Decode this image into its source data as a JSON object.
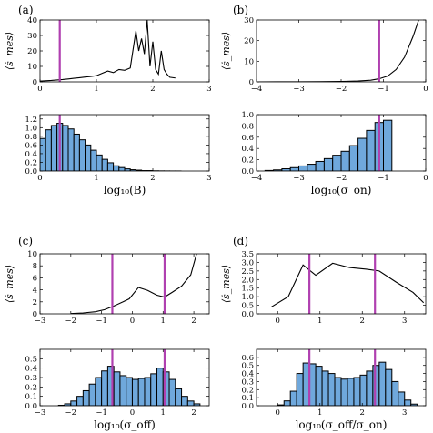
{
  "chart_data": [
    {
      "panel": "(a)",
      "top": {
        "type": "line",
        "ylabel": "⟨ṡ_mes⟩",
        "xlim": [
          0,
          3
        ],
        "ylim": [
          0,
          40
        ],
        "xticks": [
          "0",
          "1",
          "2",
          "3"
        ],
        "yticks": [
          "0",
          "10",
          "20",
          "30",
          "40"
        ],
        "x": [
          0.0,
          0.1,
          0.2,
          0.3,
          0.4,
          0.5,
          0.6,
          0.7,
          0.8,
          0.9,
          1.0,
          1.1,
          1.2,
          1.3,
          1.4,
          1.5,
          1.6,
          1.7,
          1.75,
          1.8,
          1.85,
          1.9,
          1.95,
          2.0,
          2.05,
          2.1,
          2.15,
          2.2,
          2.25,
          2.3,
          2.4
        ],
        "y": [
          0.5,
          0.7,
          0.9,
          1.2,
          1.5,
          1.9,
          2.3,
          2.7,
          3.1,
          3.5,
          4.0,
          5.5,
          7.0,
          6.0,
          8.0,
          7.5,
          9.0,
          33.0,
          20.0,
          28.0,
          18.0,
          40.0,
          10.0,
          26.0,
          8.0,
          5.0,
          20.0,
          8.0,
          5.0,
          3.0,
          2.5
        ],
        "vlines": [
          0.35
        ]
      },
      "bottom": {
        "type": "bar",
        "xlabel": "log₁₀(B)",
        "xlim": [
          0,
          3
        ],
        "ylim": [
          0,
          1.3
        ],
        "xticks": [
          "0",
          "1",
          "2",
          "3"
        ],
        "yticks": [
          "0.0",
          "0.2",
          "0.4",
          "0.6",
          "0.8",
          "1.0",
          "1.2"
        ],
        "bin_edges": [
          0.0,
          0.1,
          0.2,
          0.3,
          0.4,
          0.5,
          0.6,
          0.7,
          0.8,
          0.9,
          1.0,
          1.1,
          1.2,
          1.3,
          1.4,
          1.5,
          1.6,
          1.7,
          1.8,
          1.9,
          2.0,
          2.1,
          2.2,
          2.3,
          2.4,
          2.5
        ],
        "values": [
          0.75,
          0.95,
          1.05,
          1.1,
          1.05,
          0.97,
          0.85,
          0.72,
          0.6,
          0.48,
          0.37,
          0.27,
          0.19,
          0.12,
          0.08,
          0.05,
          0.03,
          0.02,
          0.01,
          0.01,
          0.005,
          0.003,
          0.002,
          0.001,
          0.001
        ],
        "vlines": [
          0.35
        ]
      }
    },
    {
      "panel": "(b)",
      "top": {
        "type": "line",
        "ylabel": "⟨ṡ_mes⟩",
        "xlim": [
          -4,
          0
        ],
        "ylim": [
          0,
          30
        ],
        "xticks": [
          "−4",
          "−3",
          "−2",
          "−1",
          "0"
        ],
        "yticks": [
          "0",
          "10",
          "20",
          "30"
        ],
        "x": [
          -4.0,
          -3.5,
          -3.0,
          -2.5,
          -2.0,
          -1.6,
          -1.3,
          -1.1,
          -0.9,
          -0.7,
          -0.5,
          -0.3,
          -0.15
        ],
        "y": [
          0.0,
          0.02,
          0.05,
          0.1,
          0.2,
          0.4,
          0.8,
          1.5,
          2.8,
          6.0,
          12.0,
          22.0,
          31.0
        ],
        "vlines": [
          -1.1
        ]
      },
      "bottom": {
        "type": "bar",
        "xlabel": "log₁₀(σ_on)",
        "xlim": [
          -4,
          0
        ],
        "ylim": [
          0,
          1.0
        ],
        "xticks": [
          "−4",
          "−3",
          "−2",
          "−1",
          "0"
        ],
        "yticks": [
          "0.0",
          "0.2",
          "0.4",
          "0.6",
          "0.8",
          "1.0"
        ],
        "bin_edges": [
          -3.8,
          -3.6,
          -3.4,
          -3.2,
          -3.0,
          -2.8,
          -2.6,
          -2.4,
          -2.2,
          -2.0,
          -1.8,
          -1.6,
          -1.4,
          -1.2,
          -1.0,
          -0.8
        ],
        "values": [
          0.01,
          0.02,
          0.04,
          0.06,
          0.09,
          0.12,
          0.17,
          0.22,
          0.28,
          0.35,
          0.45,
          0.58,
          0.72,
          0.86,
          0.9
        ],
        "vlines": [
          -1.1
        ]
      }
    },
    {
      "panel": "(c)",
      "top": {
        "type": "line",
        "ylabel": "⟨ṡ_mes⟩",
        "xlim": [
          -3,
          2.5
        ],
        "ylim": [
          0,
          10
        ],
        "xticks": [
          "−3",
          "−2",
          "−1",
          "0",
          "1",
          "2"
        ],
        "yticks": [
          "0",
          "2",
          "4",
          "6",
          "8",
          "10"
        ],
        "x": [
          -2.0,
          -1.6,
          -1.2,
          -0.9,
          -0.6,
          -0.3,
          -0.1,
          0.2,
          0.5,
          0.8,
          1.05,
          1.3,
          1.6,
          1.9,
          2.1
        ],
        "y": [
          0.05,
          0.15,
          0.35,
          0.7,
          1.3,
          2.0,
          2.5,
          4.4,
          3.9,
          3.1,
          2.8,
          3.6,
          4.6,
          6.5,
          10.2
        ],
        "vlines": [
          -0.65,
          1.05
        ]
      },
      "bottom": {
        "type": "bar",
        "xlabel": "log₁₀(σ_off)",
        "xlim": [
          -3,
          2.5
        ],
        "ylim": [
          0,
          0.6
        ],
        "xticks": [
          "−3",
          "−2",
          "−1",
          "0",
          "1",
          "2"
        ],
        "yticks": [
          "0.0",
          "0.1",
          "0.2",
          "0.3",
          "0.4",
          "0.5"
        ],
        "bin_edges": [
          -2.4,
          -2.2,
          -2.0,
          -1.8,
          -1.6,
          -1.4,
          -1.2,
          -1.0,
          -0.8,
          -0.6,
          -0.4,
          -0.2,
          0.0,
          0.2,
          0.4,
          0.6,
          0.8,
          1.0,
          1.2,
          1.4,
          1.6,
          1.8,
          2.0,
          2.2
        ],
        "values": [
          0.005,
          0.02,
          0.05,
          0.1,
          0.16,
          0.23,
          0.3,
          0.37,
          0.42,
          0.36,
          0.32,
          0.3,
          0.28,
          0.29,
          0.3,
          0.34,
          0.4,
          0.36,
          0.28,
          0.18,
          0.1,
          0.05,
          0.02
        ],
        "vlines": [
          -0.65,
          1.05
        ]
      }
    },
    {
      "panel": "(d)",
      "top": {
        "type": "line",
        "ylabel": "⟨ṡ_mes⟩",
        "xlim": [
          -0.5,
          3.5
        ],
        "ylim": [
          0,
          3.5
        ],
        "xticks": [
          "0",
          "1",
          "2",
          "3"
        ],
        "yticks": [
          "0.0",
          "0.5",
          "1.0",
          "1.5",
          "2.0",
          "2.5",
          "3.0",
          "3.5"
        ],
        "x": [
          -0.15,
          0.25,
          0.6,
          0.9,
          1.3,
          1.7,
          2.1,
          2.4,
          2.8,
          3.2,
          3.45
        ],
        "y": [
          0.4,
          1.0,
          2.85,
          2.25,
          2.95,
          2.7,
          2.6,
          2.5,
          1.85,
          1.25,
          0.65
        ],
        "vlines": [
          0.75,
          2.3
        ]
      },
      "bottom": {
        "type": "bar",
        "xlabel": "log₁₀(σ_off/σ_on)",
        "xlim": [
          -0.5,
          3.5
        ],
        "ylim": [
          0,
          0.7
        ],
        "xticks": [
          "0",
          "1",
          "2",
          "3"
        ],
        "yticks": [
          "0.0",
          "0.1",
          "0.2",
          "0.3",
          "0.4",
          "0.5",
          "0.6"
        ],
        "bin_edges": [
          0.0,
          0.15,
          0.3,
          0.45,
          0.6,
          0.75,
          0.9,
          1.05,
          1.2,
          1.35,
          1.5,
          1.65,
          1.8,
          1.95,
          2.1,
          2.25,
          2.4,
          2.55,
          2.7,
          2.85,
          3.0,
          3.15,
          3.3
        ],
        "values": [
          0.01,
          0.06,
          0.18,
          0.4,
          0.53,
          0.52,
          0.49,
          0.43,
          0.4,
          0.35,
          0.33,
          0.34,
          0.35,
          0.38,
          0.43,
          0.5,
          0.54,
          0.45,
          0.3,
          0.17,
          0.07,
          0.02
        ],
        "vlines": [
          0.75,
          2.3
        ]
      }
    }
  ]
}
